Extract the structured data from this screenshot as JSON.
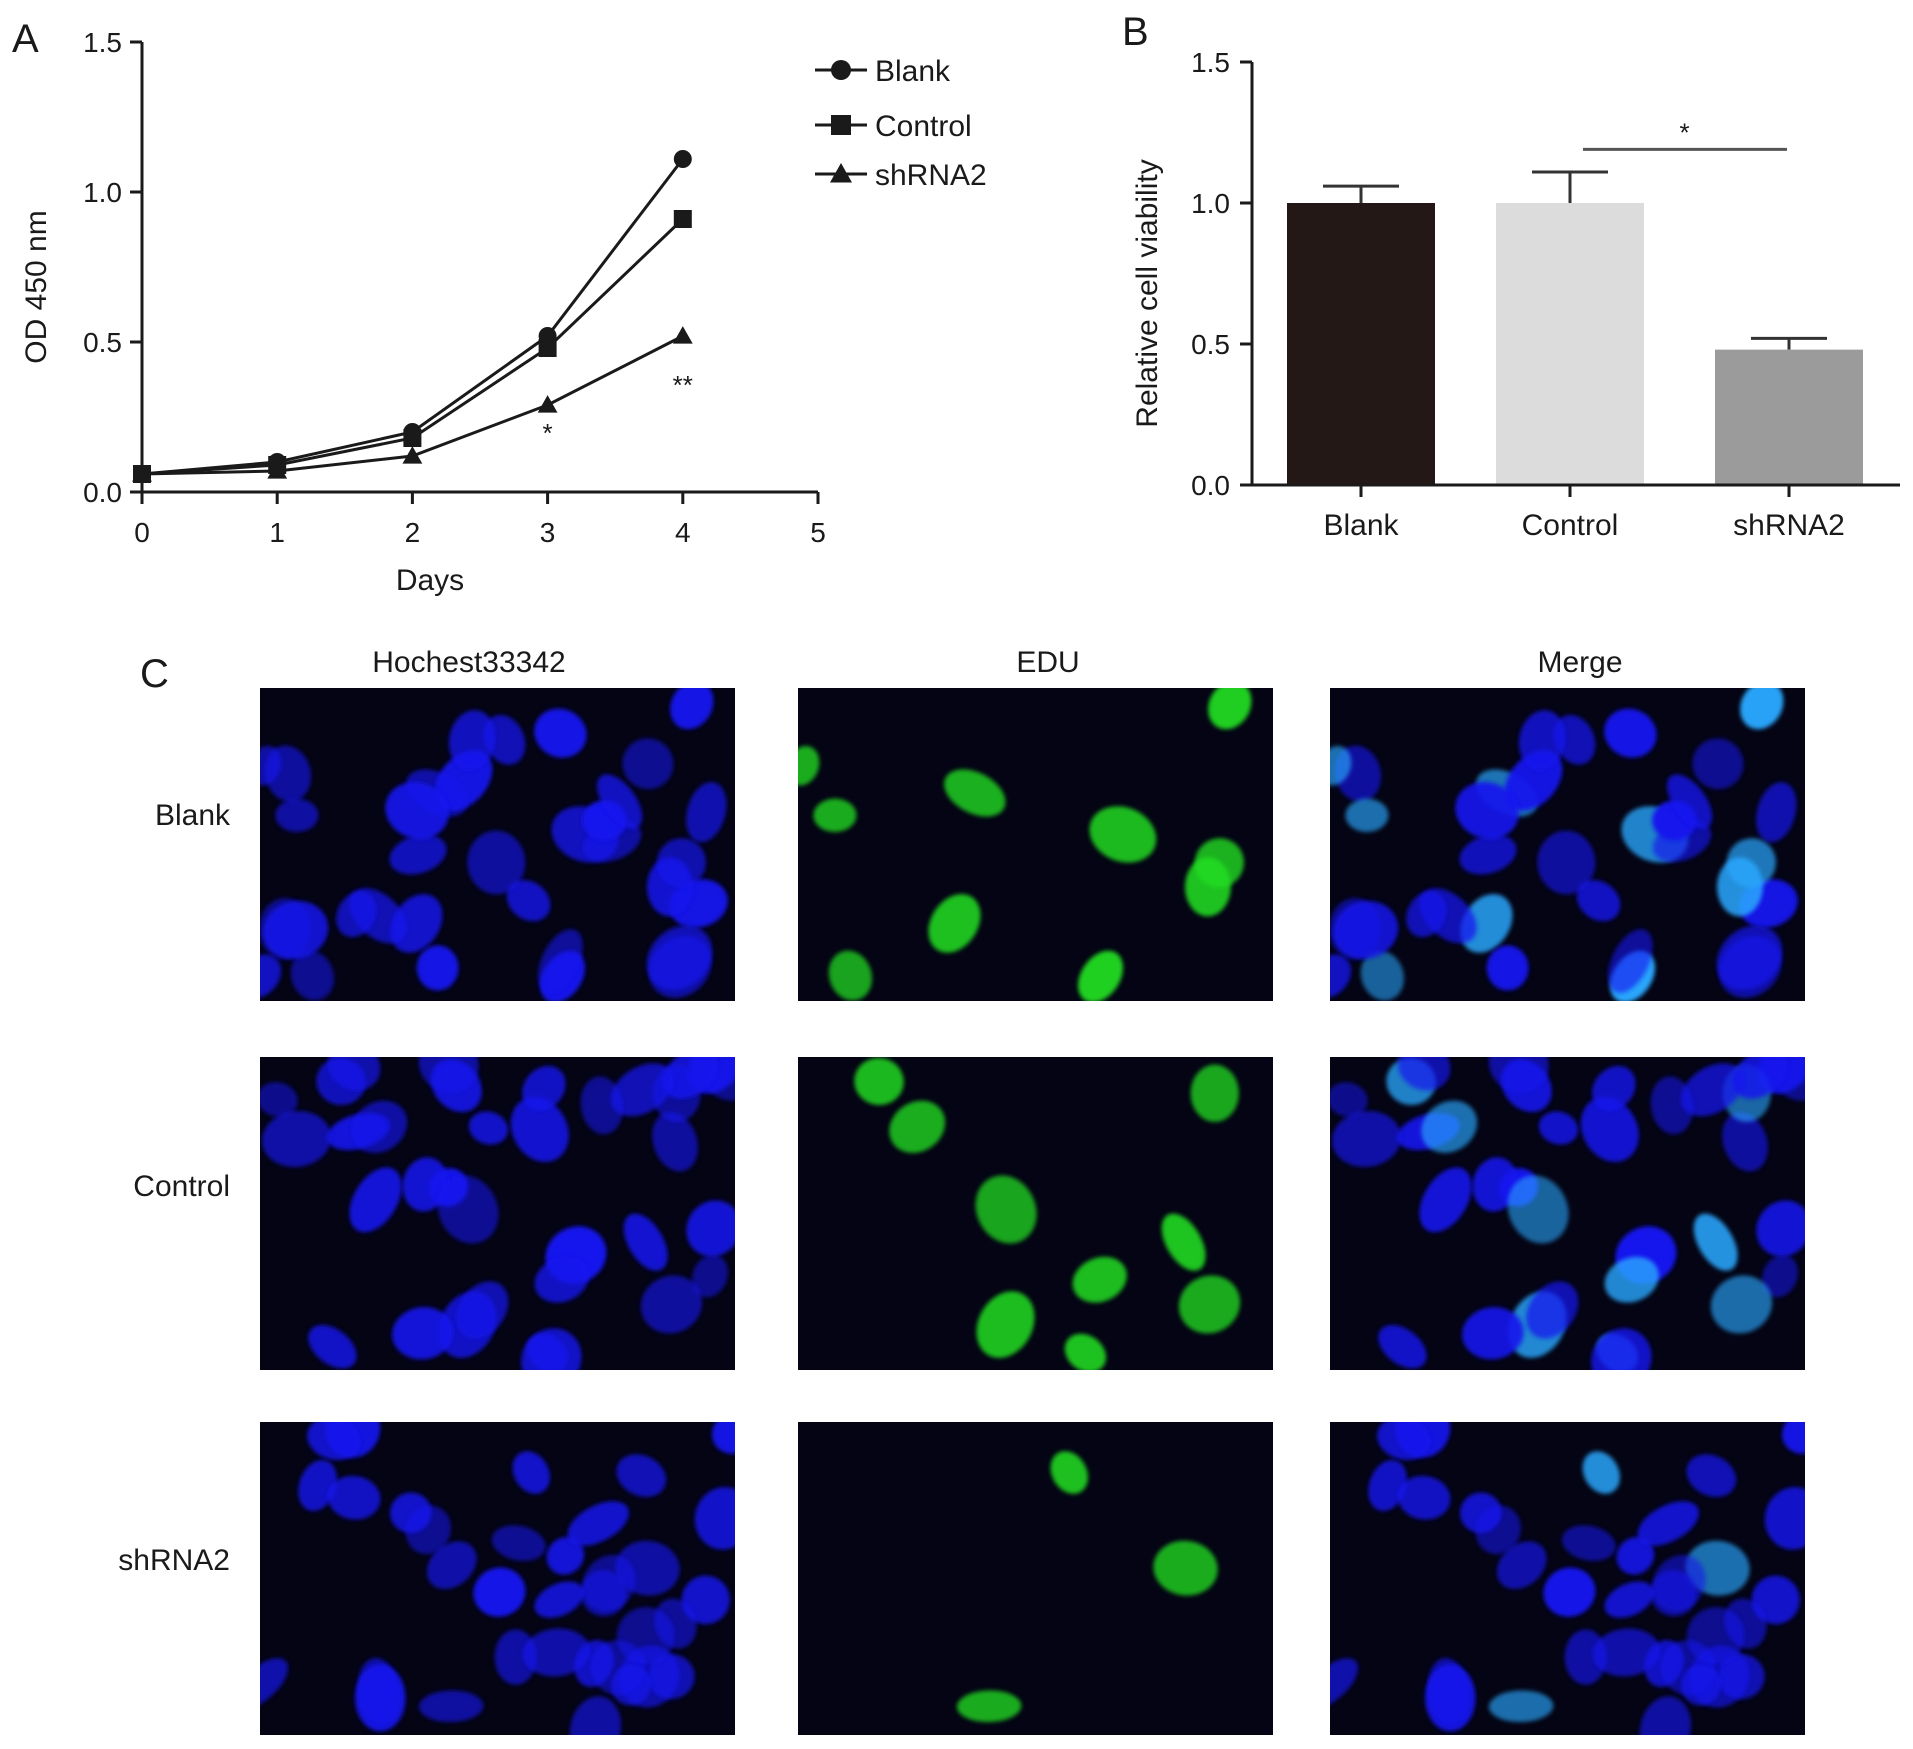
{
  "panels": {
    "A": {
      "letter": "A"
    },
    "B": {
      "letter": "B"
    },
    "C": {
      "letter": "C"
    }
  },
  "chart_data": [
    {
      "panel": "A",
      "type": "line",
      "xlabel": "Days",
      "ylabel": "OD 450 nm",
      "xlim": [
        0,
        5
      ],
      "ylim": [
        0,
        1.5
      ],
      "xticks": [
        "0",
        "1",
        "2",
        "3",
        "4",
        "5"
      ],
      "yticks": [
        "0.0",
        "0.5",
        "1.0",
        "1.5"
      ],
      "grid": false,
      "legend_position": "top-right",
      "x": [
        0,
        1,
        2,
        3,
        4
      ],
      "series": [
        {
          "name": "Blank",
          "marker": "circle",
          "values": [
            0.06,
            0.1,
            0.2,
            0.52,
            1.11
          ]
        },
        {
          "name": "Control",
          "marker": "square",
          "values": [
            0.06,
            0.09,
            0.18,
            0.48,
            0.91
          ]
        },
        {
          "name": "shRNA2",
          "marker": "triangle",
          "values": [
            0.06,
            0.07,
            0.12,
            0.29,
            0.52
          ]
        }
      ],
      "annotations": [
        {
          "x": 3,
          "y": 0.2,
          "text": "*"
        },
        {
          "x": 4,
          "y": 0.36,
          "text": "**"
        }
      ],
      "colors": {
        "line": "#1a1a1a"
      }
    },
    {
      "panel": "B",
      "type": "bar",
      "ylabel": "Relative cell viability",
      "ylim": [
        0,
        1.5
      ],
      "yticks": [
        "0.0",
        "0.5",
        "1.0",
        "1.5"
      ],
      "grid": false,
      "categories": [
        "Blank",
        "Control",
        "shRNA2"
      ],
      "values": [
        1.0,
        1.0,
        0.48
      ],
      "errors": [
        0.06,
        0.11,
        0.04
      ],
      "colors": [
        "#231816",
        "#dcdcdc",
        "#9b9b9b"
      ],
      "significance": {
        "from": "Control",
        "to": "shRNA2",
        "y": 1.19,
        "text": "*"
      }
    }
  ],
  "micrographs": {
    "columns": [
      "Hochest33342",
      "EDU",
      "Merge"
    ],
    "rows": [
      "Blank",
      "Control",
      "shRNA2"
    ],
    "colors": {
      "nuclei": "#1414ee",
      "edu": "#22dd22",
      "merge_positive": "#2aa8ff",
      "background": "#040414"
    }
  }
}
